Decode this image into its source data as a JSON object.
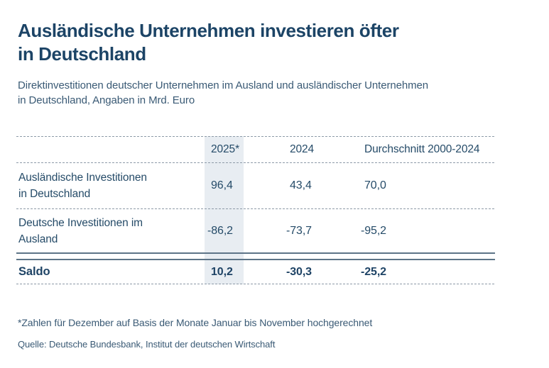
{
  "page": {
    "title_line1": "Ausländische Unternehmen investieren öfter",
    "title_line2": "in Deutschland",
    "subtitle_line1": "Direktinvestitionen deutscher Unternehmen im Ausland und ausländischer Unternehmen",
    "subtitle_line2": "in Deutschland, Angaben in Mrd. Euro",
    "footnote": "*Zahlen für Dezember auf Basis der Monate Januar bis November hochgerechnet",
    "source": "Quelle: Deutsche Bundesbank, Institut der deutschen Wirtschaft"
  },
  "table": {
    "columns": [
      "2025*",
      "2024",
      "Durchschnitt 2000-2024"
    ],
    "rows": [
      {
        "label_line1": "Ausländische Investitionen",
        "label_line2": "in Deutschland",
        "values": [
          "96,4",
          "43,4",
          "70,0"
        ]
      },
      {
        "label_line1": "Deutsche Investitionen im",
        "label_line2": "Ausland",
        "values": [
          "-86,2",
          "-73,7",
          "-95,2"
        ]
      },
      {
        "label_line1": "Saldo",
        "values": [
          "10,2",
          "-30,3",
          "-25,2"
        ]
      }
    ],
    "highlight_color": "#e8edf2"
  },
  "chart_data": {
    "type": "table",
    "title": "Ausländische Unternehmen investieren öfter in Deutschland",
    "subtitle": "Direktinvestitionen deutscher Unternehmen im Ausland und ausländischer Unternehmen in Deutschland, Angaben in Mrd. Euro",
    "unit": "Mrd. Euro",
    "columns": [
      "2025*",
      "2024",
      "Durchschnitt 2000-2024"
    ],
    "rows": [
      {
        "label": "Ausländische Investitionen in Deutschland",
        "values": [
          96.4,
          43.4,
          70.0
        ]
      },
      {
        "label": "Deutsche Investitionen im Ausland",
        "values": [
          -86.2,
          -73.7,
          -95.2
        ]
      },
      {
        "label": "Saldo",
        "values": [
          10.2,
          -30.3,
          -25.2
        ]
      }
    ],
    "highlighted_column": "2025*",
    "footnote": "*Zahlen für Dezember auf Basis der Monate Januar bis November hochgerechnet",
    "source": "Quelle: Deutsche Bundesbank, Institut der deutschen Wirtschaft"
  }
}
